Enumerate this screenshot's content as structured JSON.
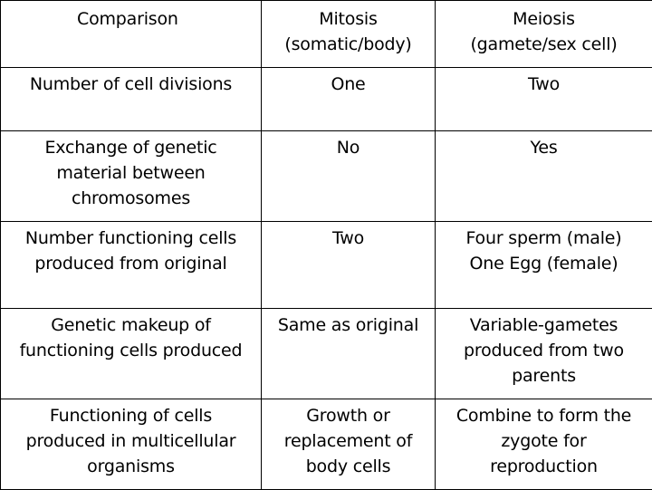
{
  "header": {
    "comparison": "Comparison",
    "mitosis_line1": "Mitosis",
    "mitosis_line2": "(somatic/body)",
    "meiosis_line1": "Meiosis",
    "meiosis_line2": "(gamete/sex cell)"
  },
  "rows": [
    {
      "label": [
        "Number of cell divisions"
      ],
      "mitosis": [
        "One"
      ],
      "meiosis": [
        "Two"
      ]
    },
    {
      "label": [
        "Exchange of genetic",
        "material between",
        "chromosomes"
      ],
      "mitosis": [
        "No"
      ],
      "meiosis": [
        "Yes"
      ]
    },
    {
      "label": [
        "Number functioning cells",
        "produced from original"
      ],
      "mitosis": [
        "Two"
      ],
      "meiosis": [
        "Four sperm (male)",
        "One Egg (female)"
      ]
    },
    {
      "label": [
        "Genetic makeup of",
        "functioning cells produced"
      ],
      "mitosis": [
        "Same as original"
      ],
      "meiosis": [
        "Variable-gametes",
        "produced from two",
        "parents"
      ]
    },
    {
      "label": [
        "Functioning of cells",
        "produced in multicellular",
        "organisms"
      ],
      "mitosis": [
        "Growth or",
        "replacement of",
        "body cells"
      ],
      "meiosis": [
        "Combine to form the",
        "zygote for",
        "reproduction"
      ]
    }
  ]
}
